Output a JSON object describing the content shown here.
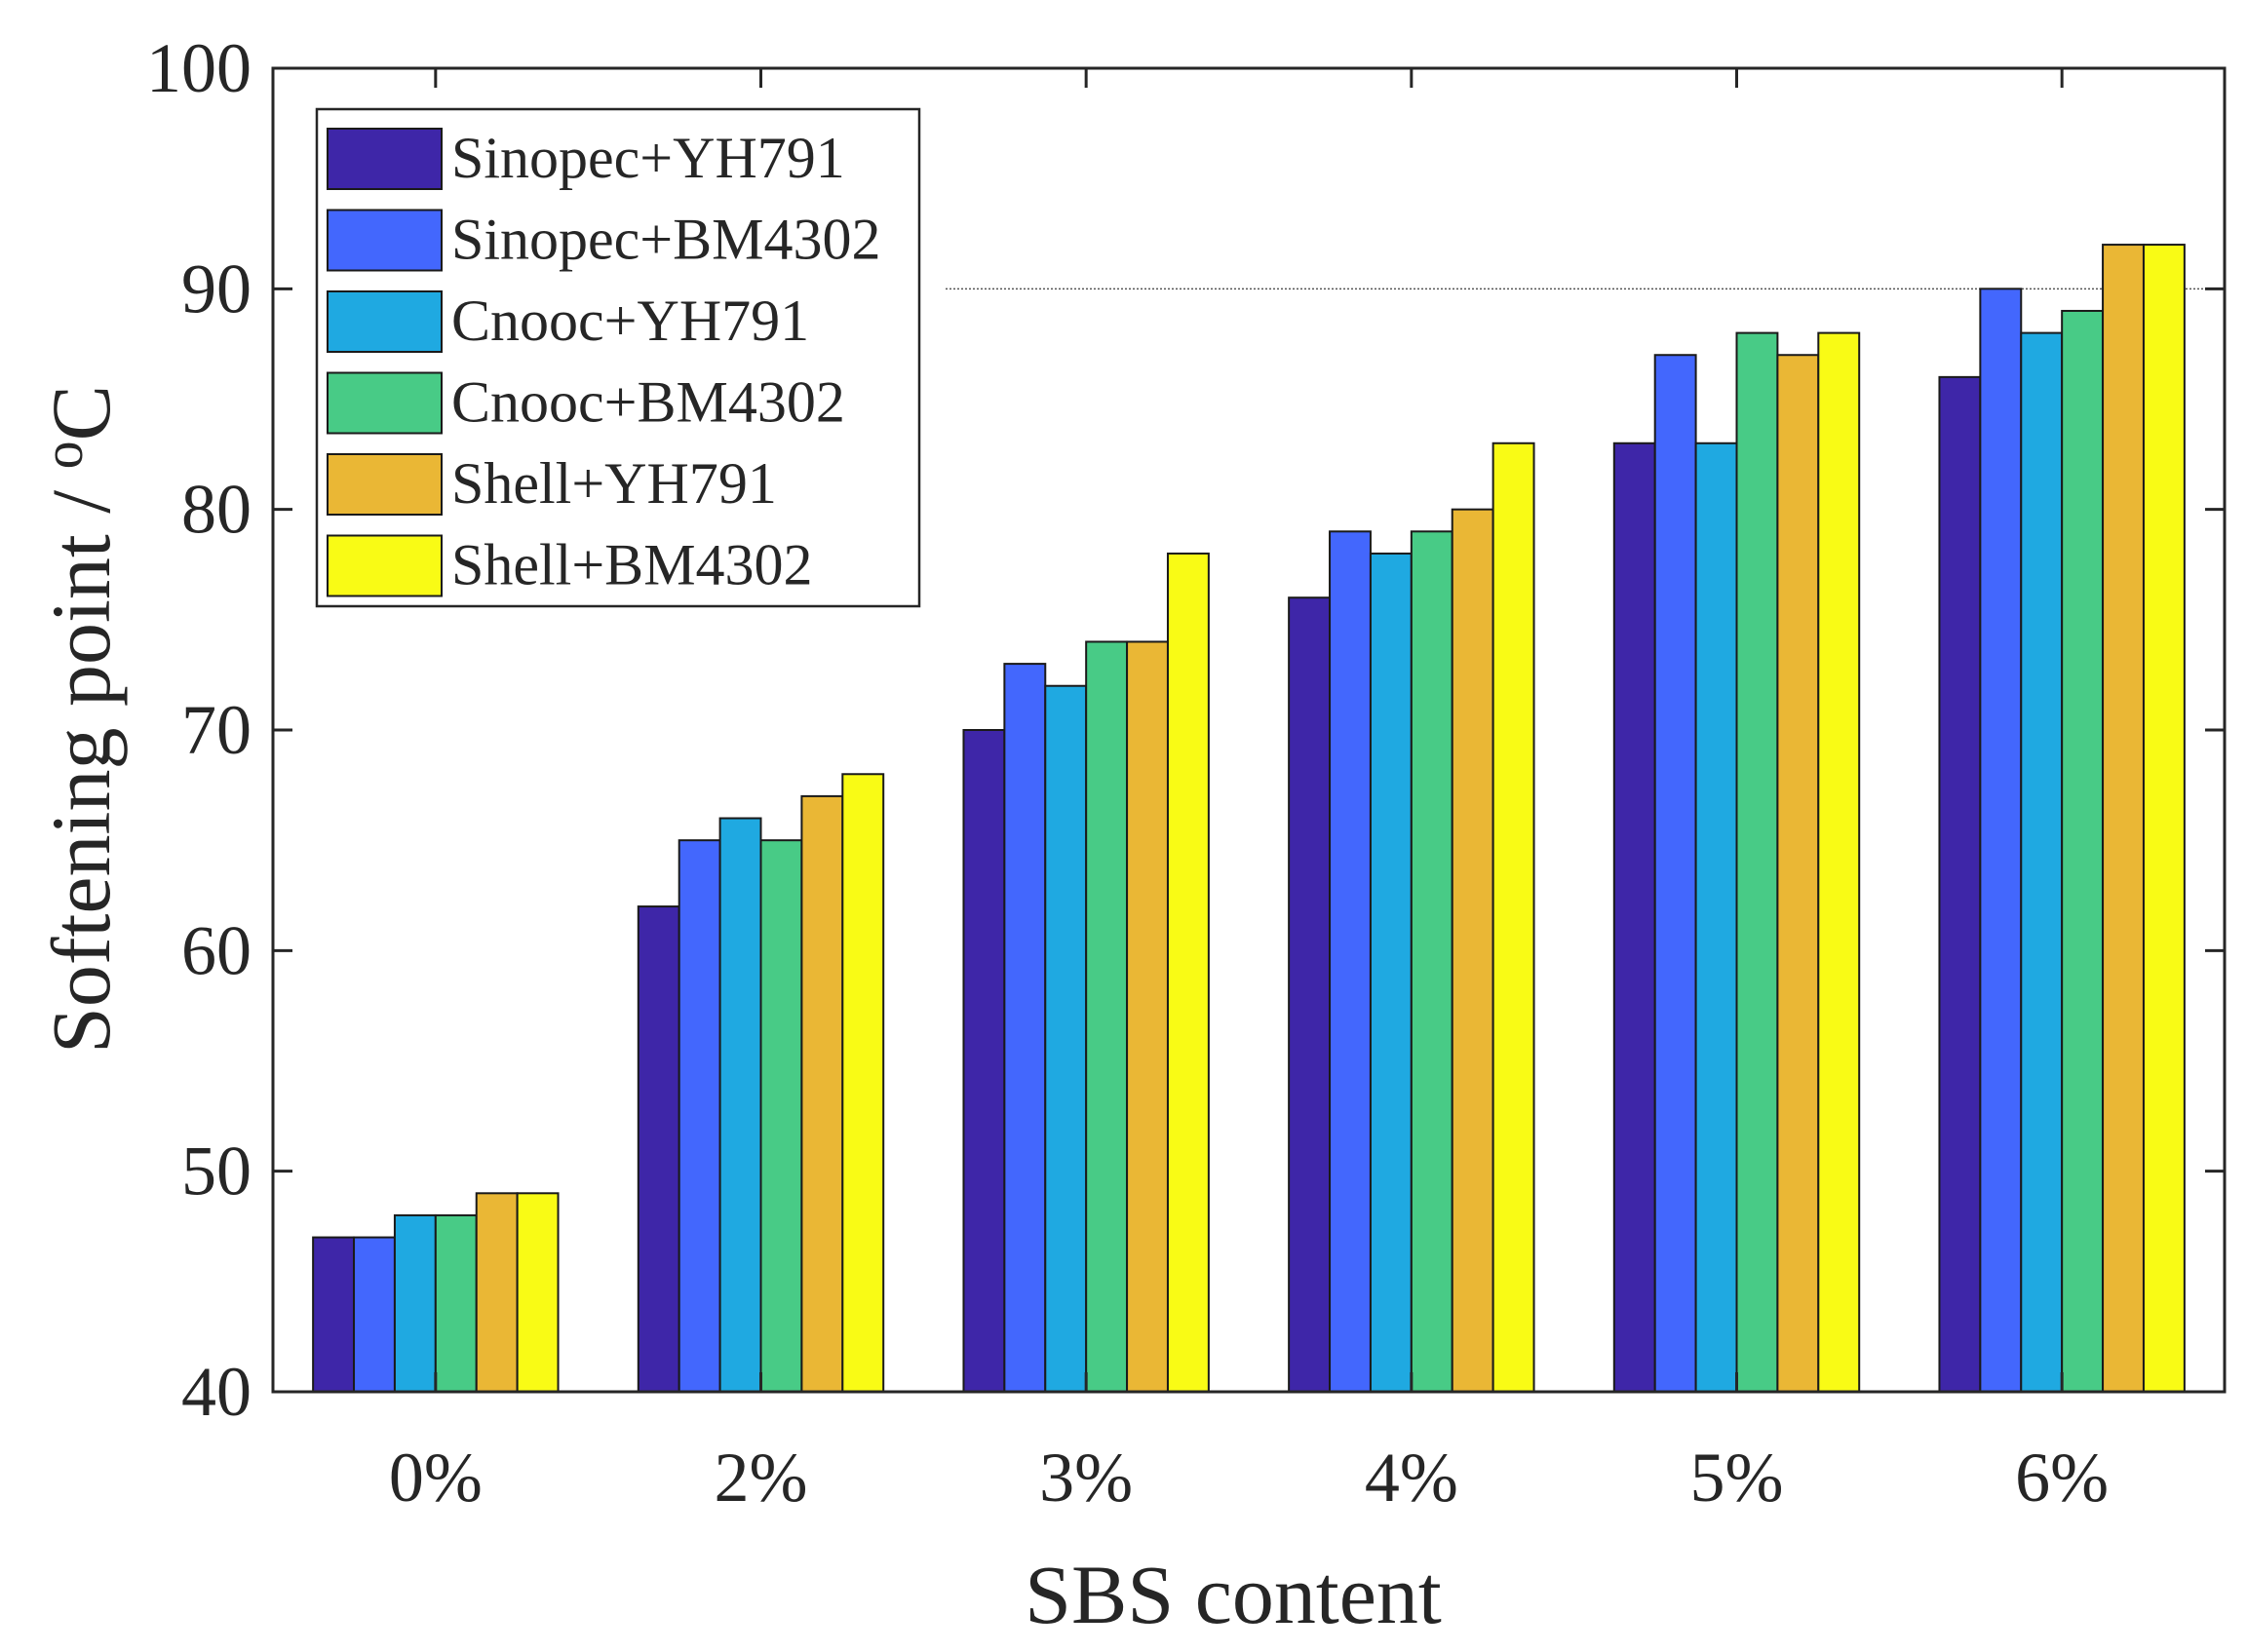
{
  "chart_data": {
    "type": "bar",
    "title": "",
    "xlabel": "SBS content",
    "ylabel": "Softening point / ",
    "ylabel_unit": "C",
    "ylabel_superscript": "o",
    "categories": [
      "0%",
      "2%",
      "3%",
      "4%",
      "5%",
      "6%"
    ],
    "ylim": [
      40,
      100
    ],
    "yticks": [
      "40",
      "50",
      "60",
      "70",
      "80",
      "90",
      "100"
    ],
    "reference_line": 90,
    "grid": false,
    "legend_position": "top-left",
    "series": [
      {
        "name": "Sinopec+YH791",
        "color": "#3e26a8",
        "values": [
          47,
          62,
          70,
          76,
          83,
          86
        ]
      },
      {
        "name": "Sinopec+BM4302",
        "color": "#4367fd",
        "values": [
          47,
          65,
          73,
          79,
          87,
          90
        ]
      },
      {
        "name": "Cnooc+YH791",
        "color": "#1fa9e1",
        "values": [
          48,
          66,
          72,
          78,
          83,
          88
        ]
      },
      {
        "name": "Cnooc+BM4302",
        "color": "#48cb86",
        "values": [
          48,
          65,
          74,
          79,
          88,
          89
        ]
      },
      {
        "name": "Shell+YH791",
        "color": "#eab735",
        "values": [
          49,
          67,
          74,
          80,
          87,
          92
        ]
      },
      {
        "name": "Shell+BM4302",
        "color": "#f9fb15",
        "values": [
          49,
          68,
          78,
          83,
          88,
          92
        ]
      }
    ]
  }
}
